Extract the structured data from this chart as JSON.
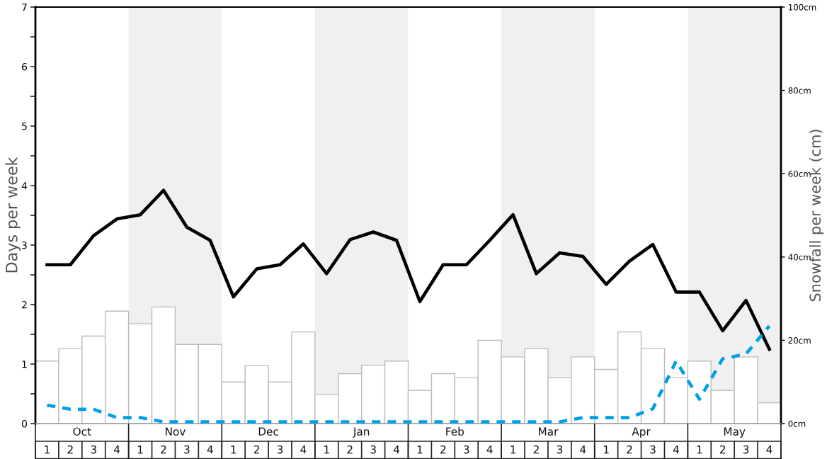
{
  "chart_data": {
    "type": "bar",
    "categories": [
      "1",
      "2",
      "3",
      "4",
      "1",
      "2",
      "3",
      "4",
      "1",
      "2",
      "3",
      "4",
      "1",
      "2",
      "3",
      "4",
      "1",
      "2",
      "3",
      "4",
      "1",
      "2",
      "3",
      "4",
      "1",
      "2",
      "3",
      "4",
      "1",
      "2",
      "3",
      "4"
    ],
    "annotations": [
      "Oct",
      "Nov",
      "Dec",
      "Jan",
      "Feb",
      "Mar",
      "Apr",
      "May"
    ],
    "ylabel": "Days per week",
    "y2label": "Snowfall per week (cm)",
    "ylim": [
      0,
      7
    ],
    "yticks": [
      0,
      {
        "value": 0.5,
        "label": null
      },
      1,
      {
        "value": 1.5,
        "label": null
      },
      2,
      {
        "value": 2.5,
        "label": null
      },
      3,
      {
        "value": 3.5,
        "label": null
      },
      4,
      {
        "value": 4.5,
        "label": null
      },
      5,
      {
        "value": 5.5,
        "label": null
      },
      6,
      {
        "value": 6.5,
        "label": null
      },
      7
    ],
    "y2lim": [
      0,
      100
    ],
    "y2ticks": [
      {
        "value": 0,
        "label": "0cm"
      },
      {
        "value": 20,
        "label": "20cm"
      },
      {
        "value": 40,
        "label": "40cm"
      },
      {
        "value": 60,
        "label": "60cm"
      },
      {
        "value": 80,
        "label": "80cm"
      },
      {
        "value": 100,
        "label": "100cm"
      }
    ],
    "series": [
      {
        "axis": "y2",
        "color": "#ffffff",
        "values": [
          15,
          18,
          21,
          27,
          24,
          28,
          19,
          19,
          10,
          14,
          10,
          22,
          7,
          12,
          14,
          15,
          8,
          12,
          11,
          20,
          16,
          18,
          11,
          16,
          13,
          22,
          18,
          11,
          15,
          8,
          16,
          5
        ]
      },
      {
        "type": "line",
        "color": "#000000",
        "line_style": "solid",
        "values": [
          2.67,
          2.67,
          3.16,
          3.44,
          3.51,
          3.92,
          3.3,
          3.08,
          2.13,
          2.6,
          2.67,
          3.02,
          2.52,
          3.09,
          3.22,
          3.08,
          2.05,
          2.67,
          2.67,
          3.08,
          3.51,
          2.52,
          2.87,
          2.81,
          2.34,
          2.73,
          3.01,
          2.21,
          2.21,
          1.56,
          2.07,
          1.25
        ]
      },
      {
        "type": "line",
        "color": "#00a0e4",
        "line_style": "dashed",
        "values": [
          0.31,
          0.24,
          0.24,
          0.1,
          0.1,
          0.03,
          0.03,
          0.03,
          0.03,
          0.03,
          0.03,
          0.03,
          0.03,
          0.03,
          0.03,
          0.03,
          0.03,
          0.03,
          0.03,
          0.03,
          0.03,
          0.03,
          0.03,
          0.1,
          0.1,
          0.1,
          0.25,
          1.05,
          0.41,
          1.09,
          1.17,
          1.64
        ]
      }
    ]
  }
}
